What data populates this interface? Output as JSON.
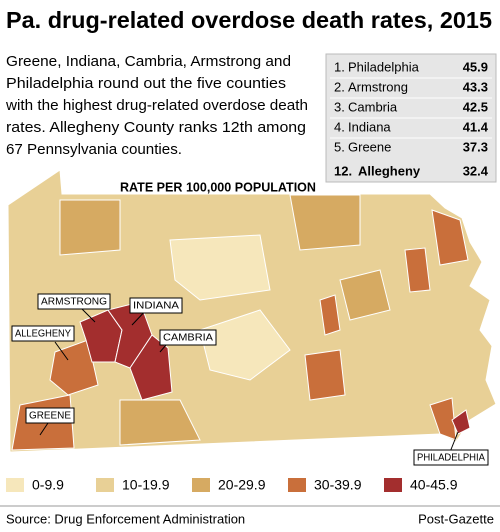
{
  "header": {
    "title": "Pa. drug-related overdose death rates, 2015",
    "description": [
      "Greene, Indiana, Cambria, Armstrong and",
      "Philadelphia round out the five counties",
      "with the highest drug-related overdose death",
      "rates. Allegheny County ranks 12th among",
      "67 Pennsylvania counties."
    ]
  },
  "table": {
    "rows": [
      [
        "1.",
        "Philadelphia",
        45.9
      ],
      [
        "2.",
        "Armstrong",
        43.3
      ],
      [
        "3.",
        "Cambria",
        42.5
      ],
      [
        "4.",
        "Indiana",
        41.4
      ],
      [
        "5.",
        "Greene",
        37.3
      ],
      [
        "12.",
        "Allegheny",
        32.4
      ]
    ]
  },
  "map": {
    "title": "RATE PER 100,000 POPULATION",
    "labels": [
      "ARMSTRONG",
      "INDIANA",
      "CAMBRIA",
      "ALLEGHENY",
      "GREENE",
      "PHILADELPHIA"
    ]
  },
  "legend": [
    {
      "label": "0-9.9",
      "color": "#f6e7bb"
    },
    {
      "label": "10-19.9",
      "color": "#e8d096"
    },
    {
      "label": "20-29.9",
      "color": "#d6aa62"
    },
    {
      "label": "30-39.9",
      "color": "#c96f3b"
    },
    {
      "label": "40-45.9",
      "color": "#a32e2e"
    }
  ],
  "footer": {
    "source": "Source: Drug Enforcement Administration",
    "credit": "Post-Gazette"
  }
}
